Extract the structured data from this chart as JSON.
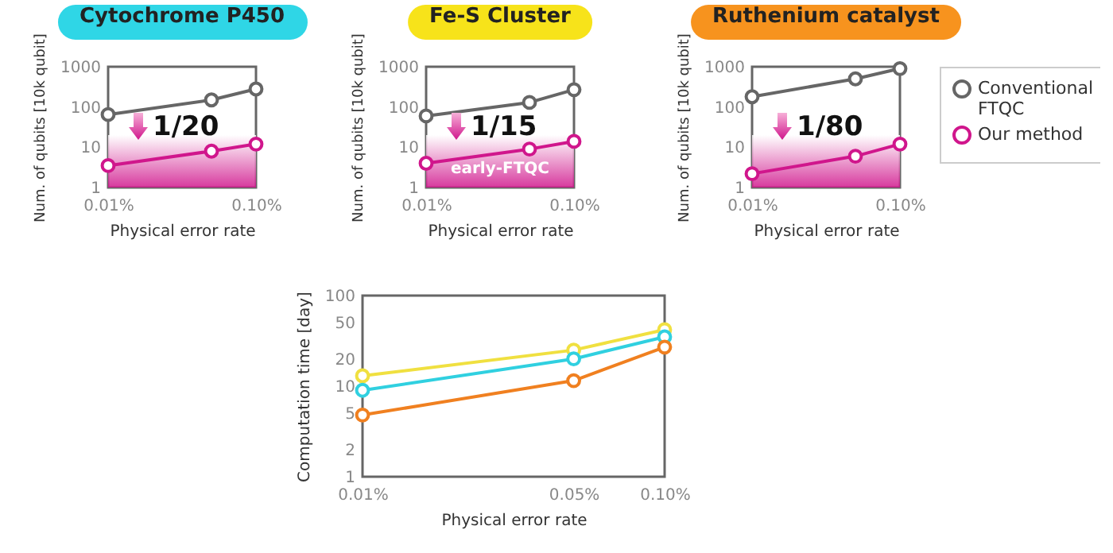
{
  "chart_data": [
    {
      "type": "line",
      "title": "Cytochrome P450",
      "xlabel": "Physical error rate",
      "ylabel": "Num. of qubits [10k qubit]",
      "log": "xy",
      "x": [
        0.01,
        0.05,
        0.1
      ],
      "xlim": [
        0.01,
        0.1
      ],
      "xticks": [
        {
          "value": 0.01,
          "label": "0.01%"
        },
        {
          "value": 0.1,
          "label": "0.10%"
        }
      ],
      "ylim": [
        1,
        1000
      ],
      "yticks": [
        1,
        10,
        100,
        1000
      ],
      "marker": "circle",
      "legend": false,
      "grid": false,
      "series": [
        {
          "color": "#666666",
          "values": [
            65,
            150,
            280
          ]
        },
        {
          "color": "#d0168c",
          "values": [
            3.5,
            8,
            12
          ]
        }
      ],
      "bands": [
        {
          "axis": "y",
          "from": 1,
          "to": 20,
          "color": "#d0168c"
        }
      ],
      "annotations": [
        "1/20"
      ]
    },
    {
      "type": "line",
      "title": "Fe-S Cluster",
      "xlabel": "Physical error rate",
      "ylabel": "Num. of qubits [10k qubit]",
      "log": "xy",
      "x": [
        0.01,
        0.05,
        0.1
      ],
      "xlim": [
        0.01,
        0.1
      ],
      "xticks": [
        {
          "value": 0.01,
          "label": "0.01%"
        },
        {
          "value": 0.1,
          "label": "0.10%"
        }
      ],
      "ylim": [
        1,
        1000
      ],
      "yticks": [
        1,
        10,
        100,
        1000
      ],
      "marker": "circle",
      "legend": false,
      "grid": false,
      "series": [
        {
          "color": "#666666",
          "values": [
            60,
            130,
            270
          ]
        },
        {
          "color": "#d0168c",
          "values": [
            4,
            9,
            14
          ]
        }
      ],
      "bands": [
        {
          "axis": "y",
          "from": 1,
          "to": 20,
          "color": "#d0168c",
          "label": "early-FTQC"
        }
      ],
      "annotations": [
        "1/15"
      ]
    },
    {
      "type": "line",
      "title": "Ruthenium catalyst",
      "xlabel": "Physical error rate",
      "ylabel": "Num. of qubits [10k qubit]",
      "log": "xy",
      "x": [
        0.01,
        0.05,
        0.1
      ],
      "xlim": [
        0.01,
        0.1
      ],
      "xticks": [
        {
          "value": 0.01,
          "label": "0.01%"
        },
        {
          "value": 0.1,
          "label": "0.10%"
        }
      ],
      "ylim": [
        1,
        1000
      ],
      "yticks": [
        1,
        10,
        100,
        1000
      ],
      "marker": "circle",
      "legend": "right",
      "grid": false,
      "series": [
        {
          "name": "Conventional FTQC",
          "color": "#666666",
          "values": [
            180,
            500,
            900
          ]
        },
        {
          "name": "Our method",
          "color": "#d0168c",
          "values": [
            2.2,
            6,
            12
          ]
        }
      ],
      "bands": [
        {
          "axis": "y",
          "from": 1,
          "to": 20,
          "color": "#d0168c"
        }
      ],
      "annotations": [
        "1/80"
      ]
    },
    {
      "type": "line",
      "xlabel": "Physical error rate",
      "ylabel": "Computation time [day]",
      "log": "xy",
      "x": [
        0.01,
        0.05,
        0.1
      ],
      "xlim": [
        0.01,
        0.1
      ],
      "xticks": [
        {
          "value": 0.01,
          "label": "0.01%"
        },
        {
          "value": 0.05,
          "label": "0.05%"
        },
        {
          "value": 0.1,
          "label": "0.10%"
        }
      ],
      "ylim": [
        1,
        100
      ],
      "yticks": [
        1,
        2,
        5,
        10,
        20,
        50,
        100
      ],
      "marker": "circle",
      "legend": false,
      "grid": false,
      "series": [
        {
          "color": "#f0e040",
          "values": [
            13,
            25,
            42
          ]
        },
        {
          "color": "#30d0e0",
          "values": [
            9,
            20,
            35
          ]
        },
        {
          "color": "#f08020",
          "values": [
            4.8,
            11.5,
            27
          ]
        }
      ]
    }
  ]
}
